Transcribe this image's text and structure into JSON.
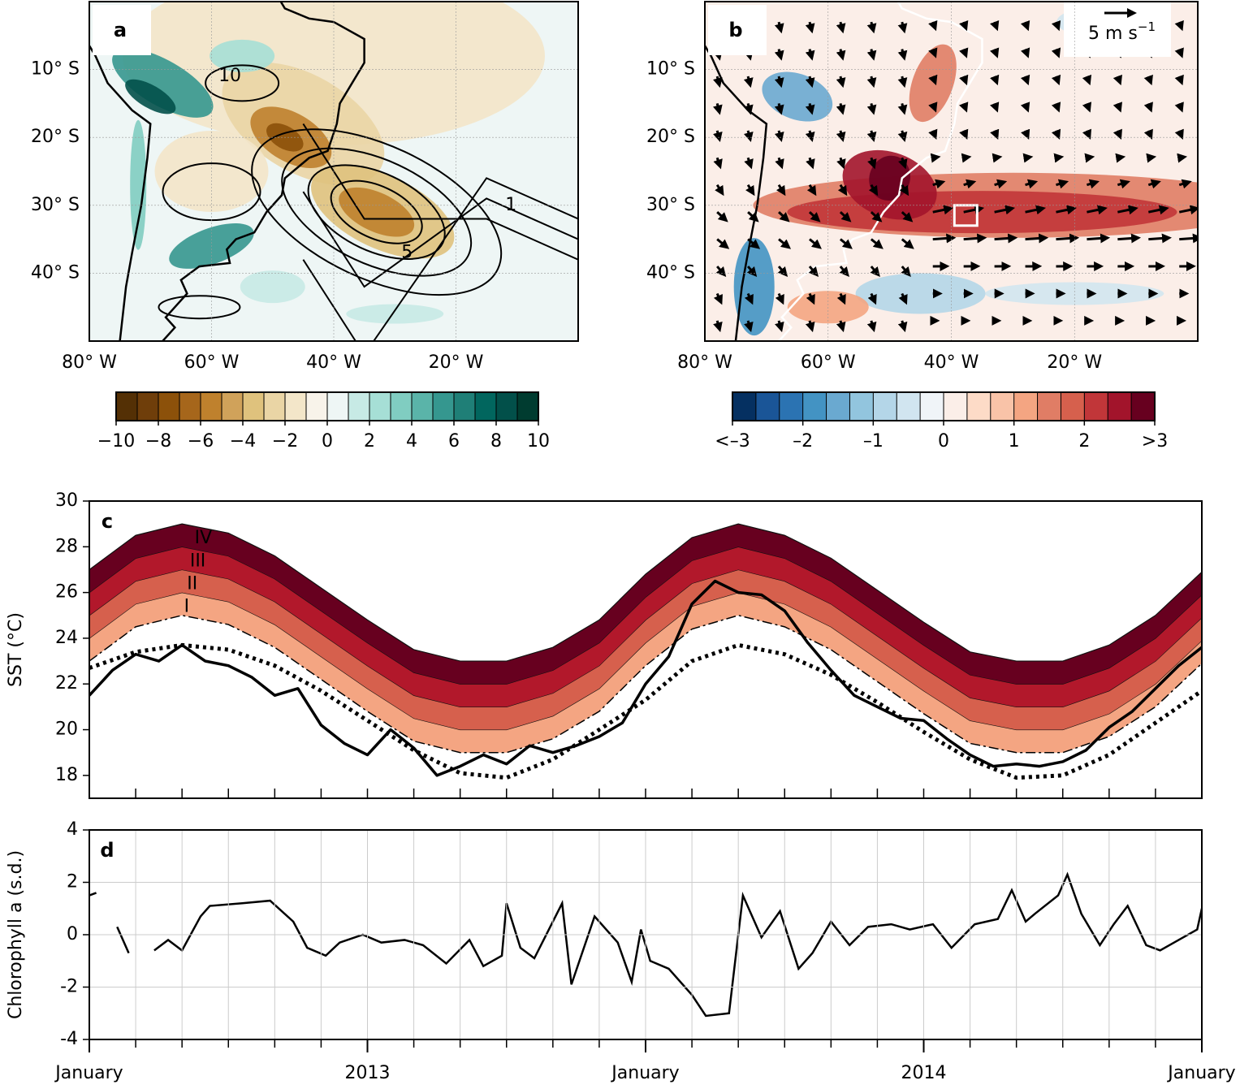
{
  "chart_data": [
    {
      "type": "map",
      "panel_label": "a",
      "xlim": [
        -80,
        0
      ],
      "ylim": [
        -50,
        0
      ],
      "xticks": [
        {
          "value": -80,
          "label": "80° W"
        },
        {
          "value": -60,
          "label": "60° W"
        },
        {
          "value": -40,
          "label": "40° W"
        },
        {
          "value": -20,
          "label": "20° W"
        }
      ],
      "yticks": [
        {
          "value": -10,
          "label": "10° S"
        },
        {
          "value": -20,
          "label": "20° S"
        },
        {
          "value": -30,
          "label": "30° S"
        },
        {
          "value": -40,
          "label": "40° S"
        }
      ],
      "contour_labels": [
        "10",
        "5",
        "1"
      ],
      "colorbar": {
        "lim": [
          -10,
          10
        ],
        "ticks": [
          {
            "value": -10,
            "label": "−10"
          },
          {
            "value": -8,
            "label": "−8"
          },
          {
            "value": -6,
            "label": "−6"
          },
          {
            "value": -4,
            "label": "−4"
          },
          {
            "value": -2,
            "label": "−2"
          },
          0,
          2,
          4,
          6,
          8,
          10
        ],
        "colors": [
          "#543005",
          "#6f3e0a",
          "#8c510a",
          "#a6661b",
          "#bf812d",
          "#d0a25a",
          "#dfc27d",
          "#ead5a5",
          "#f3e6c9",
          "#f8f3ea",
          "#eef6f5",
          "#c7eae5",
          "#a6dfd6",
          "#80cdc1",
          "#5ab4a9",
          "#35978f",
          "#1f7f77",
          "#01665e",
          "#02504a",
          "#003c30"
        ]
      }
    },
    {
      "type": "map",
      "panel_label": "b",
      "xlim": [
        -80,
        0
      ],
      "ylim": [
        -50,
        0
      ],
      "xticks": [
        {
          "value": -80,
          "label": "80° W"
        },
        {
          "value": -60,
          "label": "60° W"
        },
        {
          "value": -40,
          "label": "40° W"
        },
        {
          "value": -20,
          "label": "20° W"
        }
      ],
      "yticks": [
        {
          "value": -10,
          "label": "10° S"
        },
        {
          "value": -20,
          "label": "20° S"
        },
        {
          "value": -30,
          "label": "30° S"
        },
        {
          "value": -40,
          "label": "40° S"
        }
      ],
      "wind_scale_label": "5 m s",
      "wind_scale_exponent": "−1",
      "colorbar": {
        "lim": [
          -3,
          3
        ],
        "ticks": [
          {
            "value": -3,
            "label": "<–3"
          },
          {
            "value": -2,
            "label": "–2"
          },
          {
            "value": -1,
            "label": "–1"
          },
          0,
          1,
          2,
          {
            "value": 3,
            "label": ">3"
          }
        ],
        "colors": [
          "#053061",
          "#1a5597",
          "#2b73b2",
          "#4393c3",
          "#6aa9d0",
          "#92c5de",
          "#b4d6e8",
          "#d1e5f0",
          "#f0f4f8",
          "#fbeee8",
          "#fddbc7",
          "#f9c3a8",
          "#f4a582",
          "#e07d65",
          "#d6604d",
          "#c13639",
          "#a2142b",
          "#67001f"
        ]
      }
    },
    {
      "type": "line",
      "panel_label": "c",
      "ylabel": "SST (°C)",
      "xlim": [
        0,
        24
      ],
      "ylim": [
        17,
        30
      ],
      "yticks": [
        18,
        20,
        22,
        24,
        26,
        28,
        30
      ],
      "series": [
        {
          "style": "dotted",
          "color": "#000000",
          "x": [
            0,
            1,
            2,
            3,
            4,
            5,
            6,
            7,
            8,
            9,
            10,
            11,
            12,
            13,
            14,
            15,
            16,
            17,
            18,
            19,
            20,
            21,
            22,
            23,
            24
          ],
          "values": [
            22.7,
            23.4,
            23.7,
            23.5,
            22.8,
            21.7,
            20.4,
            19.1,
            18.1,
            17.9,
            18.7,
            20.0,
            21.3,
            23.0,
            23.7,
            23.3,
            22.4,
            21.2,
            19.9,
            18.7,
            17.9,
            18.0,
            18.9,
            20.3,
            21.7
          ]
        },
        {
          "style": "dashed",
          "color": "#000000",
          "x": [
            0,
            1,
            2,
            3,
            4,
            5,
            6,
            7,
            8,
            9,
            10,
            11,
            12,
            13,
            14,
            15,
            16,
            17,
            18,
            19,
            20,
            21,
            22,
            23,
            24
          ],
          "values": [
            23.0,
            24.5,
            25.0,
            24.6,
            23.6,
            22.2,
            20.8,
            19.5,
            19.0,
            19.0,
            19.6,
            20.8,
            22.8,
            24.4,
            25.0,
            24.5,
            23.5,
            22.1,
            20.7,
            19.4,
            19.0,
            19.0,
            19.7,
            21.0,
            22.9
          ]
        },
        {
          "style": "solid",
          "color": "#000000",
          "x": [
            0,
            0.5,
            1,
            1.5,
            2,
            2.5,
            3,
            3.5,
            4,
            4.5,
            5,
            5.5,
            6,
            6.5,
            7,
            7.5,
            8,
            8.5,
            9,
            9.5,
            10,
            10.5,
            11,
            11.5,
            12,
            12.5,
            13,
            13.5,
            14,
            14.5,
            15,
            15.5,
            16,
            16.5,
            17,
            17.5,
            18,
            18.5,
            19,
            19.5,
            20,
            20.5,
            21,
            21.5,
            22,
            22.5,
            23,
            23.5,
            24
          ],
          "values": [
            21.5,
            22.6,
            23.3,
            23.0,
            23.7,
            23.0,
            22.8,
            22.3,
            21.5,
            21.8,
            20.2,
            19.4,
            18.9,
            20.0,
            19.2,
            18.0,
            18.4,
            18.9,
            18.5,
            19.3,
            19.0,
            19.3,
            19.7,
            20.3,
            22.0,
            23.2,
            25.5,
            26.5,
            26.0,
            25.9,
            25.2,
            23.8,
            22.6,
            21.5,
            21.0,
            20.5,
            20.4,
            19.6,
            18.9,
            18.4,
            18.5,
            18.4,
            18.6,
            19.1,
            20.1,
            20.8,
            21.8,
            22.8,
            23.6
          ]
        }
      ],
      "bands": [
        {
          "name": "I",
          "color": "#f4a582",
          "values": [
            1,
            1,
            1,
            1,
            1,
            1,
            1,
            1,
            1,
            1,
            1,
            1,
            1,
            1,
            1,
            1,
            1,
            1,
            1,
            1,
            1,
            1,
            1,
            1,
            1
          ]
        },
        {
          "name": "II",
          "color": "#d6604d",
          "values": [
            1,
            1,
            1,
            1,
            1,
            1,
            1,
            1,
            1,
            1,
            1,
            1,
            1,
            1,
            1,
            1,
            1,
            1,
            1,
            1,
            1,
            1,
            1,
            1,
            1
          ]
        },
        {
          "name": "III",
          "color": "#b2182b",
          "values": [
            1,
            1,
            1,
            1,
            1,
            1,
            1,
            1,
            1,
            1,
            1,
            1,
            1,
            1,
            1,
            1,
            1,
            1,
            1,
            1,
            1,
            1,
            1,
            1,
            1
          ]
        },
        {
          "name": "IV",
          "color": "#67001f",
          "values": [
            1,
            1,
            1,
            1,
            1,
            1,
            1,
            1,
            1,
            1,
            1,
            1,
            1,
            1,
            1,
            1,
            1,
            1,
            1,
            1,
            1,
            1,
            1,
            1,
            1
          ]
        }
      ]
    },
    {
      "type": "line",
      "panel_label": "d",
      "ylabel": "Chlorophyll a (s.d.)",
      "xlim": [
        0,
        24
      ],
      "ylim": [
        -4,
        4
      ],
      "yticks": [
        -4,
        -2,
        0,
        2,
        4
      ],
      "grid": true,
      "color": "#000000",
      "xticks": [
        {
          "value": 0,
          "label": "January"
        },
        {
          "value": 6,
          "label": "2013"
        },
        {
          "value": 12,
          "label": "January"
        },
        {
          "value": 18,
          "label": "2014"
        },
        {
          "value": 24,
          "label": "January"
        }
      ],
      "xminorticks": [
        0,
        1,
        2,
        3,
        4,
        5,
        6,
        7,
        8,
        9,
        10,
        11,
        12,
        13,
        14,
        15,
        16,
        17,
        18,
        19,
        20,
        21,
        22,
        23,
        24
      ],
      "x": [
        0,
        0.15,
        0.4,
        0.6,
        0.85,
        1.1,
        1.4,
        1.7,
        2,
        2.4,
        2.6,
        3.3,
        3.9,
        4.4,
        4.7,
        5.1,
        5.4,
        5.9,
        6.3,
        6.8,
        7.2,
        7.7,
        8.2,
        8.5,
        8.9,
        9,
        9.3,
        9.6,
        10.2,
        10.4,
        10.9,
        11.4,
        11.7,
        11.9,
        12.1,
        12.5,
        13,
        13.3,
        13.8,
        14.1,
        14.5,
        14.9,
        15.3,
        15.6,
        16,
        16.4,
        16.8,
        17.3,
        17.7,
        18.2,
        18.6,
        19.1,
        19.6,
        19.9,
        20.2,
        20.4,
        20.9,
        21.1,
        21.4,
        21.8,
        22.1,
        22.4,
        22.8,
        23.1,
        23.4,
        23.9,
        24
      ],
      "values": [
        1.5,
        1.6,
        null,
        0.3,
        -0.7,
        null,
        -0.6,
        -0.2,
        -0.6,
        0.7,
        1.1,
        1.2,
        1.3,
        0.5,
        -0.5,
        -0.8,
        -0.3,
        0.0,
        -0.3,
        -0.2,
        -0.4,
        -1.1,
        -0.2,
        -1.2,
        -0.8,
        1.2,
        -0.5,
        -0.9,
        1.2,
        -1.9,
        0.7,
        -0.3,
        -1.8,
        0.2,
        -1.0,
        -1.3,
        -2.3,
        -3.1,
        -3.0,
        1.5,
        -0.1,
        0.9,
        -1.3,
        -0.7,
        0.5,
        -0.4,
        0.3,
        0.4,
        0.2,
        0.4,
        -0.5,
        0.4,
        0.6,
        1.7,
        0.5,
        0.8,
        1.5,
        2.3,
        0.8,
        -0.4,
        0.4,
        1.1,
        -0.4,
        -0.6,
        -0.3,
        0.2,
        1.0
      ]
    }
  ]
}
